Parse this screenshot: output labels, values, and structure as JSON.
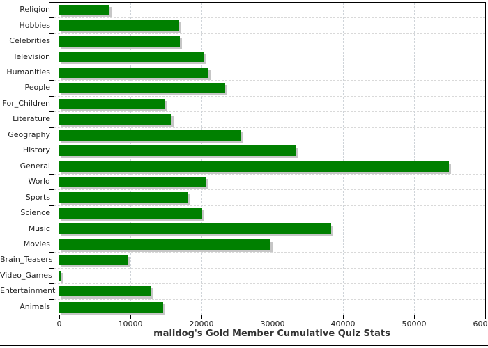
{
  "chart_data": {
    "type": "bar",
    "orientation": "horizontal",
    "title": "malidog's Gold Member Cumulative Quiz Stats",
    "categories": [
      "Religion",
      "Hobbies",
      "Celebrities",
      "Television",
      "Humanities",
      "People",
      "For_Children",
      "Literature",
      "Geography",
      "History",
      "General",
      "World",
      "Sports",
      "Science",
      "Music",
      "Movies",
      "Brain_Teasers",
      "Video_Games",
      "Entertainment",
      "Animals"
    ],
    "values": [
      7100,
      16900,
      17000,
      20300,
      21000,
      23400,
      14800,
      15800,
      25500,
      33400,
      54900,
      20700,
      18100,
      20100,
      38300,
      29800,
      9700,
      300,
      12900,
      14600
    ],
    "xlabel": "",
    "ylabel": "",
    "xlim": [
      0,
      60000
    ],
    "x_tick_labels": [
      "0",
      "10000",
      "20000",
      "30000",
      "40000",
      "50000",
      "60000"
    ],
    "x_tick_values": [
      0,
      10000,
      20000,
      30000,
      40000,
      50000,
      60000
    ],
    "grid": true,
    "legend": false,
    "colors": {
      "bar": "#008000",
      "bar_shadow": "#c6c6c6",
      "grid_h": "#d9d9d9",
      "grid_v": "#cfd4d9",
      "axis": "#000000",
      "text": "#222222",
      "title": "#333333"
    }
  }
}
